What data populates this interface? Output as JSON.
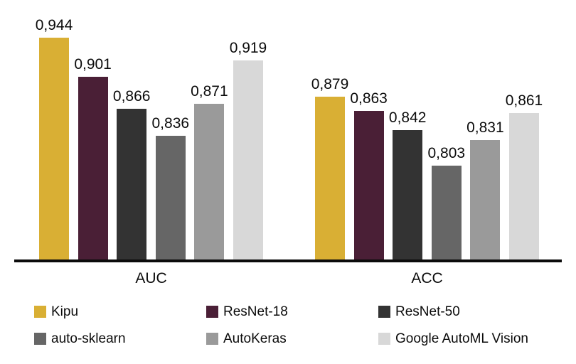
{
  "chart_data": {
    "type": "bar",
    "title": "",
    "categories": [
      "AUC",
      "ACC"
    ],
    "series": [
      {
        "name": "Kipu",
        "color": "#D9AF34",
        "values": [
          0.944,
          0.879
        ],
        "labels": [
          "0,944",
          "0,879"
        ]
      },
      {
        "name": "ResNet-18",
        "color": "#4A1F36",
        "values": [
          0.901,
          0.863
        ],
        "labels": [
          "0,901",
          "0,863"
        ]
      },
      {
        "name": "ResNet-50",
        "color": "#333333",
        "values": [
          0.866,
          0.842
        ],
        "labels": [
          "0,866",
          "0,842"
        ]
      },
      {
        "name": "auto-sklearn",
        "color": "#666666",
        "values": [
          0.836,
          0.803
        ],
        "labels": [
          "0,836",
          "0,803"
        ]
      },
      {
        "name": "AutoKeras",
        "color": "#9A9A9A",
        "values": [
          0.871,
          0.831
        ],
        "labels": [
          "0,871",
          "0,831"
        ]
      },
      {
        "name": "Google AutoML Vision",
        "color": "#D8D8D8",
        "values": [
          0.919,
          0.861
        ],
        "labels": [
          "0,919",
          "0,861"
        ]
      }
    ],
    "ylim": [
      0.7,
      0.95
    ],
    "decimal_separator": ",",
    "grid": false,
    "legend_position": "bottom",
    "axis_color": "#0B0B0B",
    "text_color": "#0B0B0B",
    "background": "#FFFFFF"
  }
}
